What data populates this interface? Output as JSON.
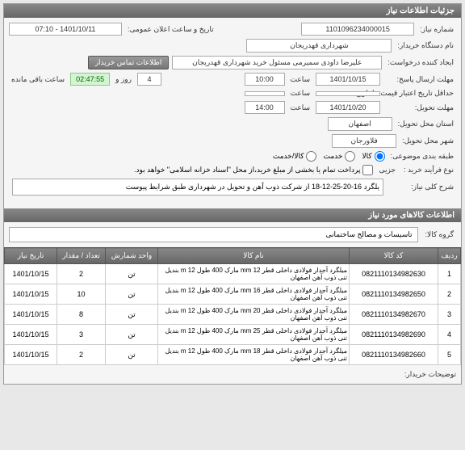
{
  "panel_title": "جزئیات اطلاعات نیاز",
  "form": {
    "need_no_label": "شماره نیاز:",
    "need_no": "1101096234000015",
    "buyer_org_label": "نام دستگاه خریدار:",
    "buyer_org": "شهرداری قهدریجان",
    "creator_label": "ایجاد کننده درخواست:",
    "creator": "علیرضا داودی سمیرمی مسئول خرید  شهرداری قهدریجان",
    "contact_btn": "اطلاعات تماس خریدار",
    "public_date_label": "تاریخ و ساعت اعلان عمومی:",
    "public_date": "1401/10/11 - 07:10",
    "deadline_label": "مهلت ارسال پاسخ:",
    "deadline_to_label": "تا تاریخ:",
    "deadline_date": "1401/10/15",
    "time_label": "ساعت",
    "deadline_time": "10:00",
    "validity_label": "حداقل تاریخ اعتبار قیمت: تا تاریخ",
    "validity_to_label": "تا تاریخ:",
    "remain_label": "ساعت باقی مانده",
    "remain_days_label": "روز و",
    "remain_days": "4",
    "remain_time": "02:47:55",
    "delivery_label": "مهلت تحویل:",
    "delivery_date": "1401/10/20",
    "delivery_time": "14:00",
    "delivery_province_label": "استان محل تحویل:",
    "delivery_province": "اصفهان",
    "delivery_city_label": "شهر محل تحویل:",
    "delivery_city": "فلاورجان",
    "subject_class_label": "طبقه بندی موضوعی:",
    "radio_goods": "کالا",
    "radio_service": "خدمت",
    "radio_both": "کالا/خدمت",
    "purchase_type_label": "نوع فرآیند خرید :",
    "payment_note": "پرداخت تمام یا بخشی از مبلغ خرید،از محل \"اسناد خزانه اسلامی\" خواهد بود.",
    "purchase_type_value": "جزیی",
    "desc_label": "شرح کلی نیاز:",
    "desc": "یلگرد 16-20-25-12-18 از شرکت ذوب آهن و تحویل در شهرداری طبق شرایط پیوست"
  },
  "goods_section_title": "اطلاعات کالاهای مورد نیاز",
  "group_label": "گروه کالا:",
  "group_value": "تاسیسات و مصالح ساختمانی",
  "table": {
    "headers": {
      "idx": "ردیف",
      "code": "کد کالا",
      "name": "نام کالا",
      "unit": "واحد شمارش",
      "qty": "تعداد / مقدار",
      "date": "تاریخ نیاز"
    },
    "rows": [
      {
        "idx": "1",
        "code": "0821110134982630",
        "name": "میلگرد آجدار فولادی داخلی قطر 12 mm مارک 400 طول 12 m بندیل تنی ذوب آهن اصفهان",
        "unit": "تن",
        "qty": "2",
        "date": "1401/10/15"
      },
      {
        "idx": "2",
        "code": "0821110134982650",
        "name": "میلگرد آجدار فولادی داخلی قطر 16 mm مارک 400 طول 12 m بندیل تنی ذوب آهن اصفهان",
        "unit": "تن",
        "qty": "10",
        "date": "1401/10/15"
      },
      {
        "idx": "3",
        "code": "0821110134982670",
        "name": "میلگرد آجدار فولادی داخلی قطر 20 mm مارک 400 طول 12 m بندیل تنی ذوب آهن اصفهان",
        "unit": "تن",
        "qty": "8",
        "date": "1401/10/15"
      },
      {
        "idx": "4",
        "code": "0821110134982690",
        "name": "میلگرد آجدار فولادی داخلی قطر 25 mm مارک 400 طول 12 m بندیل تنی ذوب آهن اصفهان",
        "unit": "تن",
        "qty": "3",
        "date": "1401/10/15"
      },
      {
        "idx": "5",
        "code": "0821110134982660",
        "name": "میلگرد آجدار فولادی داخلی قطر 18 mm مارک 400 طول 12 m بندیل تنی ذوب آهن اصفهان",
        "unit": "تن",
        "qty": "2",
        "date": "1401/10/15"
      }
    ]
  },
  "buyer_notes_label": "توضیحات خریدار:"
}
